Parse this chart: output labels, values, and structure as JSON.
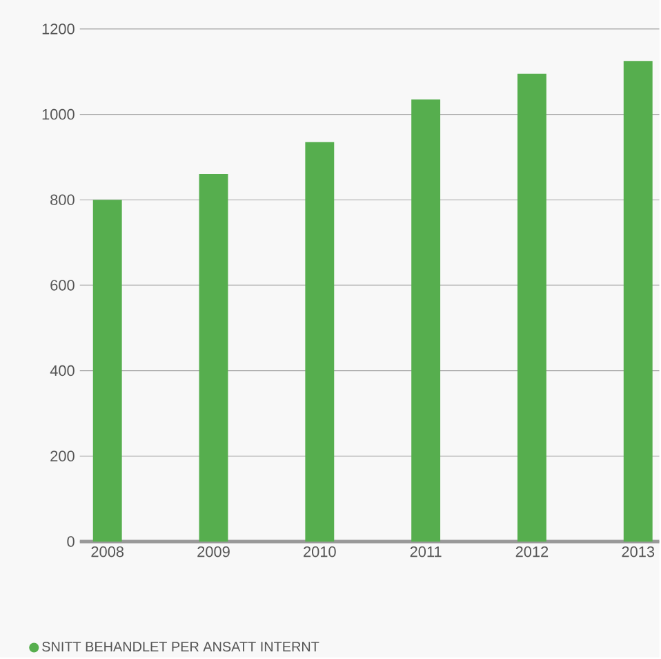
{
  "chart_data": {
    "type": "bar",
    "categories": [
      "2008",
      "2009",
      "2010",
      "2011",
      "2012",
      "2013"
    ],
    "series": [
      {
        "name": "SNITT BEHANDLET PER ANSATT INTERNT",
        "color": "#56ae4e",
        "values": [
          800,
          860,
          935,
          1035,
          1095,
          1125
        ]
      }
    ],
    "ylim": [
      0,
      1200
    ],
    "yticks": [
      0,
      200,
      400,
      600,
      800,
      1000,
      1200
    ],
    "grid": "y",
    "legend": "bottom left"
  }
}
